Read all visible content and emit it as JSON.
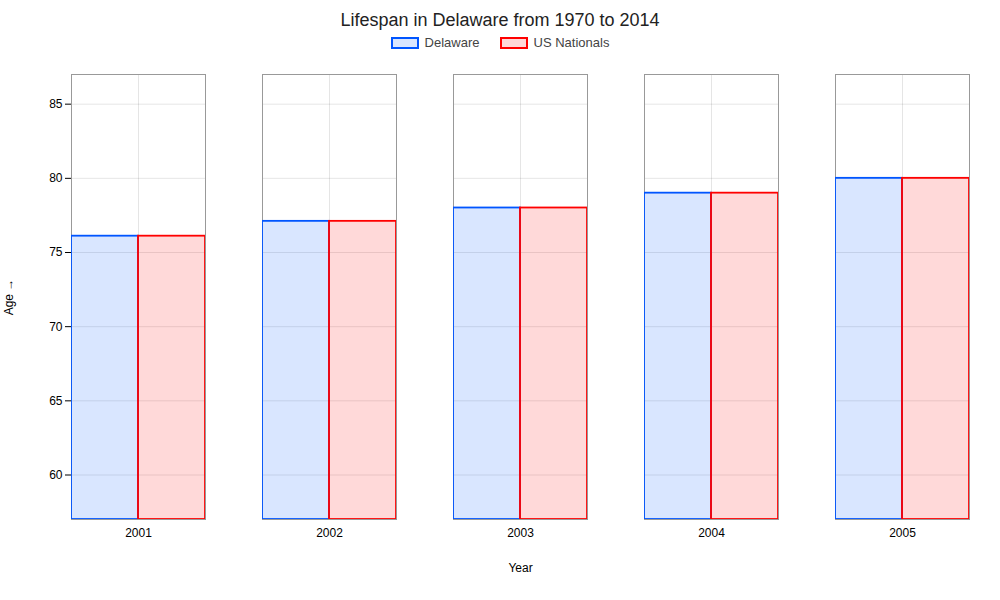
{
  "chart_data": {
    "type": "bar",
    "title": "Lifespan in Delaware from 1970 to 2014",
    "xlabel": "Year",
    "ylabel": "Age",
    "categories": [
      "2001",
      "2002",
      "2003",
      "2004",
      "2005"
    ],
    "series": [
      {
        "name": "Delaware",
        "color": "#0055ff",
        "values": [
          76.1,
          77.1,
          78.0,
          79.0,
          80.0
        ]
      },
      {
        "name": "US Nationals",
        "color": "#ff0000",
        "values": [
          76.1,
          77.1,
          78.0,
          79.0,
          80.0
        ]
      }
    ],
    "ylim": [
      57,
      87
    ],
    "yticks": [
      60,
      65,
      70,
      75,
      80,
      85
    ],
    "grid": true,
    "legend": "top"
  }
}
